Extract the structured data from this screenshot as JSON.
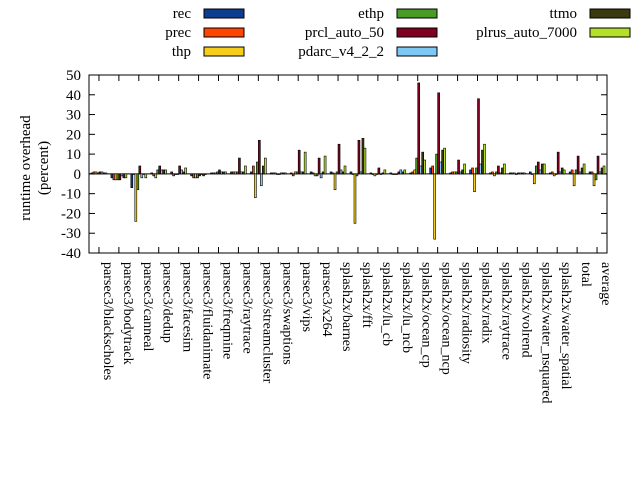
{
  "chart_data": {
    "type": "bar",
    "ylabel": "runtime overhead\n(percent)",
    "ylim": [
      -40,
      50
    ],
    "yticks": [
      -40,
      -30,
      -20,
      -10,
      0,
      10,
      20,
      30,
      40,
      50
    ],
    "legend_position": "top",
    "categories": [
      "parsec3/blackscholes",
      "parsec3/bodytrack",
      "parsec3/canneal",
      "parsec3/dedup",
      "parsec3/facesim",
      "parsec3/fluidanimate",
      "parsec3/freqmine",
      "parsec3/raytrace",
      "parsec3/streamcluster",
      "parsec3/swaptions",
      "parsec3/vips",
      "parsec3/x264",
      "splash2x/barnes",
      "splash2x/fft",
      "splash2x/lu_cb",
      "splash2x/lu_ncb",
      "splash2x/ocean_cp",
      "splash2x/ocean_ncp",
      "splash2x/radiosity",
      "splash2x/radix",
      "splash2x/raytrace",
      "splash2x/volrend",
      "splash2x/water_nsquared",
      "splash2x/water_spatial",
      "total",
      "average"
    ],
    "series": [
      {
        "name": "rec",
        "color": "#0b3d91",
        "values": [
          0.5,
          -2,
          -7,
          0.5,
          1,
          -1,
          0.5,
          1,
          1,
          0.5,
          0.5,
          1,
          1,
          1,
          0.5,
          0.5,
          0.5,
          3,
          0.5,
          2,
          0.5,
          0.5,
          1,
          0.5,
          1,
          1
        ]
      },
      {
        "name": "prec",
        "color": "#ff4500",
        "values": [
          1,
          -3,
          0,
          -1,
          -1,
          -2,
          0.5,
          1,
          4,
          0.5,
          -1,
          0.5,
          0.5,
          0,
          0,
          0,
          1,
          4,
          1,
          3,
          1,
          0.5,
          0,
          1,
          2,
          1
        ]
      },
      {
        "name": "thp",
        "color": "#f5cd1b",
        "values": [
          1,
          -3,
          -24,
          -2,
          0,
          -2,
          0.5,
          1,
          -12,
          0.5,
          1,
          -1,
          -8,
          -25,
          -1,
          0,
          2,
          -33,
          1,
          -9,
          -1,
          0.5,
          -5,
          -1,
          -6,
          -6
        ]
      },
      {
        "name": "ethp",
        "color": "#4a9a26",
        "values": [
          0.5,
          -3,
          -8,
          2,
          0,
          -2,
          1,
          1,
          6,
          0,
          1,
          -1,
          1,
          -1,
          0,
          0,
          8,
          10,
          1,
          3,
          1,
          0,
          4,
          0,
          2,
          -3
        ]
      },
      {
        "name": "prcl_auto_50",
        "color": "#800020",
        "values": [
          1,
          -3,
          4,
          4,
          4,
          -1,
          2,
          8,
          17,
          0,
          12,
          8,
          15,
          17,
          3,
          1,
          46,
          41,
          7,
          38,
          4,
          0.5,
          6,
          11,
          9,
          9
        ]
      },
      {
        "name": "pdarc_v4_2_2",
        "color": "#7ec8f5",
        "values": [
          1,
          -1,
          -2,
          2,
          2,
          0,
          1,
          1,
          -6,
          0.5,
          1,
          -2,
          2,
          1,
          0,
          2,
          4,
          6,
          1,
          5,
          0.5,
          0.5,
          2,
          1,
          1,
          1
        ]
      },
      {
        "name": "ttmo",
        "color": "#3a3a10",
        "values": [
          0.5,
          -2,
          0,
          2,
          1,
          -1,
          1,
          1,
          4,
          0.5,
          1,
          1,
          1,
          18,
          0.5,
          1,
          11,
          12,
          2,
          12,
          3,
          0.5,
          5,
          3,
          3,
          3
        ]
      },
      {
        "name": "plrus_auto_7000",
        "color": "#b5e02a",
        "values": [
          0.5,
          -2,
          -2,
          2,
          3,
          0,
          1,
          4,
          8,
          0.5,
          11,
          9,
          4,
          13,
          2,
          2,
          7,
          13,
          5,
          15,
          5,
          0.5,
          5,
          2,
          5,
          4
        ]
      }
    ]
  }
}
